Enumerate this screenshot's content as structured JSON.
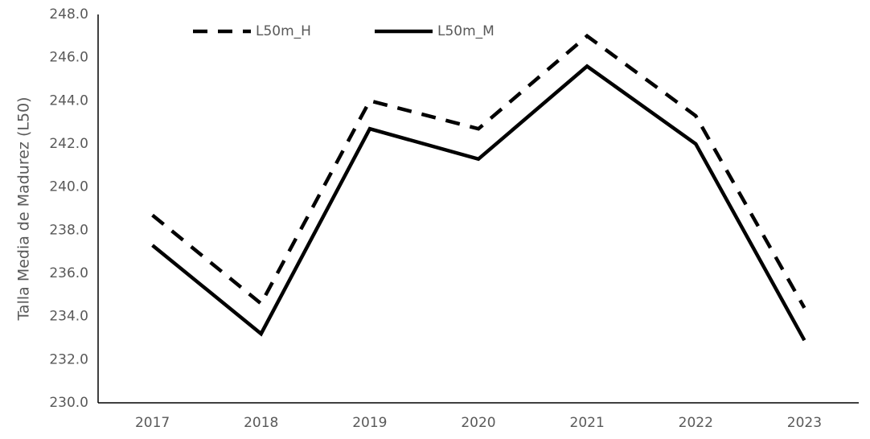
{
  "chart_data": {
    "type": "line",
    "title": "",
    "xlabel": "",
    "ylabel": "Talla Media de Madurez (L50)",
    "categories": [
      "2017",
      "2018",
      "2019",
      "2020",
      "2021",
      "2022",
      "2023"
    ],
    "ylim": [
      230.0,
      248.0
    ],
    "yticks": [
      "230.0",
      "232.0",
      "234.0",
      "236.0",
      "238.0",
      "240.0",
      "242.0",
      "244.0",
      "246.0",
      "248.0"
    ],
    "grid": false,
    "legend_position": "top-left",
    "series": [
      {
        "name": "L50m_H",
        "style": "dashed",
        "color": "#000000",
        "values": [
          238.7,
          234.6,
          244.0,
          242.7,
          247.0,
          243.3,
          234.4
        ]
      },
      {
        "name": "L50m_M",
        "style": "solid",
        "color": "#000000",
        "values": [
          237.3,
          233.2,
          242.7,
          241.3,
          245.6,
          242.0,
          232.9
        ]
      }
    ]
  }
}
